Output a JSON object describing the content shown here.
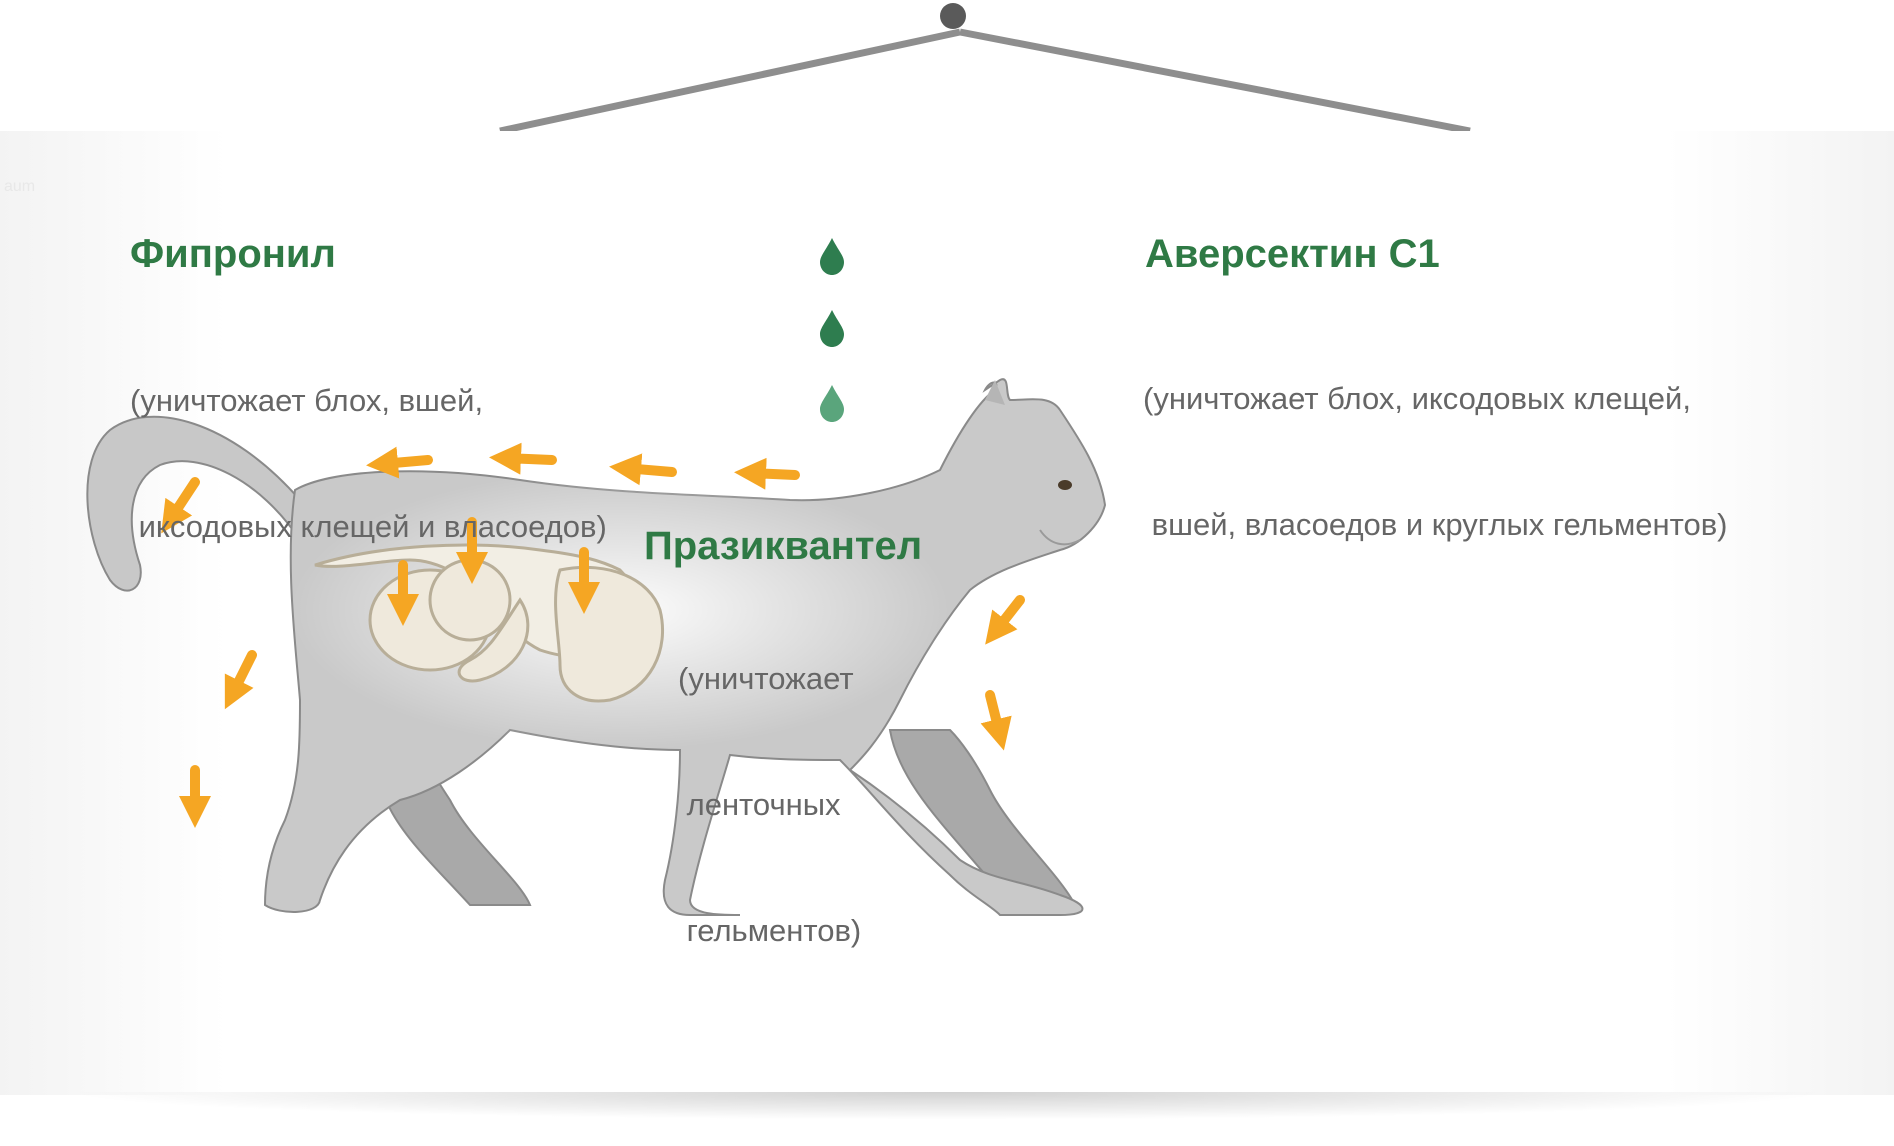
{
  "watermark": "aum",
  "fipronil": {
    "title": "Фипронил",
    "line1": "(уничтожает блох, вшей,",
    "line2": " иксодовых клещей и власоедов)"
  },
  "aversectin": {
    "title": "Аверсектин С1",
    "line1": "(уничтожает блох, иксодовых клещей,",
    "line2": " вшей, власоедов и круглых гельментов)"
  },
  "praziquantel": {
    "title": "Празиквантел",
    "line1": "(уничтожает",
    "line2": " ленточных",
    "line3": " гельментов)"
  },
  "colors": {
    "accent_green": "#2f7a45",
    "arrow_orange": "#f5a623",
    "cat_gray": "#c8c8c8",
    "drop_green": "#2e7d4f"
  }
}
